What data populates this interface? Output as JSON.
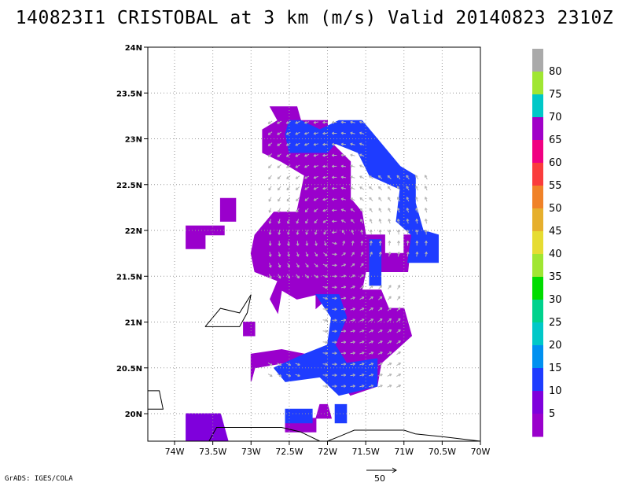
{
  "title": "140823I1 CRISTOBAL at 3 km (m/s) Valid 20140823 2310Z",
  "footer": "GrADS: IGES/COLA",
  "chart_data": {
    "type": "heatmap",
    "title": "140823I1 CRISTOBAL at 3 km (m/s) Valid 20140823 2310Z",
    "xlabel": "",
    "ylabel": "",
    "xlim": [
      -74.35,
      -70.0
    ],
    "ylim": [
      19.7,
      24.0
    ],
    "grid": true,
    "x_ticks": [
      -74,
      -73.5,
      -73,
      -72.5,
      -72,
      -71.5,
      -71,
      -70.5,
      -70
    ],
    "x_tick_labels": [
      "74W",
      "73.5W",
      "73W",
      "72.5W",
      "72W",
      "71.5W",
      "71W",
      "70.5W",
      "70W"
    ],
    "y_ticks": [
      20,
      20.5,
      21,
      21.5,
      22,
      22.5,
      23,
      23.5,
      24
    ],
    "y_tick_labels": [
      "20N",
      "20.5N",
      "21N",
      "21.5N",
      "22N",
      "22.5N",
      "23N",
      "23.5N",
      "24N"
    ],
    "colorbar": {
      "levels": [
        5,
        10,
        15,
        20,
        25,
        30,
        35,
        40,
        45,
        50,
        55,
        60,
        65,
        70,
        75,
        80
      ],
      "colors": [
        "#9a00cc",
        "#7f00dc",
        "#1e3cff",
        "#0090f0",
        "#00c8c8",
        "#00d28c",
        "#00dc00",
        "#a0e632",
        "#e6dc32",
        "#e6af2d",
        "#f08228",
        "#fa3c3c",
        "#f00082",
        "#a000c8",
        "#00c8c8",
        "#a0e632",
        "#aaaaaa"
      ]
    },
    "wind_vector_reference": {
      "label": "50",
      "speed": 50
    },
    "regions": [
      {
        "level": "5-10",
        "color": "#9a00cc",
        "polygons": [
          [
            [
              -72.75,
              23.35
            ],
            [
              -72.4,
              23.35
            ],
            [
              -72.35,
              23.2
            ],
            [
              -72.0,
              23.2
            ],
            [
              -72.0,
              23.0
            ],
            [
              -71.7,
              22.75
            ],
            [
              -71.7,
              22.35
            ],
            [
              -71.55,
              22.2
            ],
            [
              -71.5,
              21.95
            ],
            [
              -71.25,
              21.95
            ],
            [
              -71.25,
              21.75
            ],
            [
              -71.0,
              21.75
            ],
            [
              -71.0,
              21.95
            ],
            [
              -70.9,
              21.95
            ],
            [
              -70.95,
              21.55
            ],
            [
              -71.5,
              21.55
            ],
            [
              -71.55,
              21.35
            ],
            [
              -71.3,
              21.35
            ],
            [
              -71.2,
              21.15
            ],
            [
              -71.0,
              21.15
            ],
            [
              -70.9,
              20.85
            ],
            [
              -71.3,
              20.55
            ],
            [
              -71.35,
              20.3
            ],
            [
              -71.7,
              20.2
            ],
            [
              -71.85,
              20.4
            ],
            [
              -71.95,
              20.55
            ],
            [
              -72.2,
              20.6
            ],
            [
              -72.6,
              20.55
            ],
            [
              -72.95,
              20.5
            ],
            [
              -73.0,
              20.35
            ],
            [
              -73.0,
              20.65
            ],
            [
              -72.6,
              20.7
            ],
            [
              -72.3,
              20.65
            ],
            [
              -71.95,
              20.75
            ],
            [
              -71.8,
              21.1
            ],
            [
              -71.95,
              21.3
            ],
            [
              -72.15,
              21.15
            ],
            [
              -72.15,
              21.3
            ],
            [
              -72.4,
              21.25
            ],
            [
              -72.6,
              21.35
            ],
            [
              -72.65,
              21.1
            ],
            [
              -72.75,
              21.25
            ],
            [
              -72.65,
              21.45
            ],
            [
              -72.95,
              21.55
            ],
            [
              -73.0,
              21.75
            ],
            [
              -72.95,
              21.95
            ],
            [
              -72.7,
              22.2
            ],
            [
              -72.4,
              22.2
            ],
            [
              -72.3,
              22.6
            ],
            [
              -72.6,
              22.75
            ],
            [
              -72.85,
              22.85
            ],
            [
              -72.85,
              23.1
            ],
            [
              -72.65,
              23.2
            ]
          ],
          [
            [
              -73.4,
              22.35
            ],
            [
              -73.2,
              22.35
            ],
            [
              -73.2,
              22.1
            ],
            [
              -73.4,
              22.1
            ]
          ],
          [
            [
              -73.85,
              22.05
            ],
            [
              -73.35,
              22.05
            ],
            [
              -73.35,
              21.95
            ],
            [
              -73.6,
              21.95
            ],
            [
              -73.6,
              21.8
            ],
            [
              -73.85,
              21.8
            ]
          ],
          [
            [
              -73.1,
              21.0
            ],
            [
              -72.95,
              21.0
            ],
            [
              -72.95,
              20.85
            ],
            [
              -73.1,
              20.85
            ]
          ],
          [
            [
              -72.1,
              20.1
            ],
            [
              -72.0,
              20.1
            ],
            [
              -71.95,
              19.95
            ],
            [
              -72.15,
              19.95
            ]
          ],
          [
            [
              -72.55,
              19.95
            ],
            [
              -72.15,
              19.95
            ],
            [
              -72.15,
              19.8
            ],
            [
              -72.55,
              19.8
            ]
          ]
        ]
      },
      {
        "level": "10-15",
        "color": "#1e3cff",
        "polygons": [
          [
            [
              -72.5,
              23.2
            ],
            [
              -72.35,
              23.2
            ],
            [
              -72.1,
              23.1
            ],
            [
              -71.85,
              23.2
            ],
            [
              -71.55,
              23.2
            ],
            [
              -71.4,
              23.05
            ],
            [
              -71.2,
              22.85
            ],
            [
              -71.05,
              22.7
            ],
            [
              -70.85,
              22.6
            ],
            [
              -70.85,
              22.3
            ],
            [
              -70.75,
              22.0
            ],
            [
              -70.55,
              21.95
            ],
            [
              -70.55,
              21.65
            ],
            [
              -70.95,
              21.65
            ],
            [
              -70.9,
              21.95
            ],
            [
              -71.1,
              22.1
            ],
            [
              -71.05,
              22.45
            ],
            [
              -71.45,
              22.6
            ],
            [
              -71.6,
              22.85
            ],
            [
              -71.9,
              22.95
            ],
            [
              -72.0,
              22.85
            ],
            [
              -72.3,
              22.85
            ],
            [
              -72.5,
              22.85
            ],
            [
              -72.55,
              23.05
            ]
          ],
          [
            [
              -71.45,
              21.9
            ],
            [
              -71.3,
              21.9
            ],
            [
              -71.3,
              21.4
            ],
            [
              -71.45,
              21.4
            ]
          ],
          [
            [
              -72.15,
              21.3
            ],
            [
              -71.85,
              21.3
            ],
            [
              -71.75,
              21.05
            ],
            [
              -71.9,
              20.75
            ],
            [
              -71.75,
              20.55
            ],
            [
              -71.35,
              20.6
            ],
            [
              -71.35,
              20.3
            ],
            [
              -71.85,
              20.2
            ],
            [
              -72.1,
              20.4
            ],
            [
              -72.55,
              20.35
            ],
            [
              -72.7,
              20.5
            ],
            [
              -72.3,
              20.65
            ],
            [
              -72.0,
              20.75
            ],
            [
              -71.95,
              21.05
            ]
          ],
          [
            [
              -72.55,
              20.05
            ],
            [
              -72.2,
              20.05
            ],
            [
              -72.2,
              19.9
            ],
            [
              -72.55,
              19.9
            ]
          ],
          [
            [
              -71.9,
              20.1
            ],
            [
              -71.75,
              20.1
            ],
            [
              -71.75,
              19.9
            ],
            [
              -71.9,
              19.9
            ]
          ]
        ]
      },
      {
        "level": "5",
        "color": "#7f00dc",
        "polygons": [
          [
            [
              -73.85,
              20.0
            ],
            [
              -73.4,
              20.0
            ],
            [
              -73.3,
              19.7
            ],
            [
              -73.85,
              19.7
            ]
          ]
        ]
      }
    ],
    "coastlines": [
      [
        [
          -73.55,
          19.7
        ],
        [
          -73.45,
          19.85
        ],
        [
          -73.05,
          19.85
        ],
        [
          -72.85,
          19.85
        ],
        [
          -72.6,
          19.85
        ],
        [
          -72.35,
          19.8
        ],
        [
          -72.1,
          19.7
        ]
      ],
      [
        [
          -72.0,
          19.7
        ],
        [
          -71.85,
          19.75
        ],
        [
          -71.65,
          19.82
        ],
        [
          -71.4,
          19.82
        ],
        [
          -71.0,
          19.82
        ],
        [
          -70.85,
          19.78
        ],
        [
          -70.5,
          19.75
        ],
        [
          -70.0,
          19.7
        ]
      ],
      [
        [
          -73.6,
          20.95
        ],
        [
          -73.15,
          20.95
        ],
        [
          -73.05,
          21.1
        ],
        [
          -73.0,
          21.3
        ],
        [
          -73.15,
          21.1
        ],
        [
          -73.4,
          21.15
        ],
        [
          -73.6,
          20.95
        ]
      ],
      [
        [
          -74.35,
          20.25
        ],
        [
          -74.2,
          20.25
        ],
        [
          -74.15,
          20.05
        ],
        [
          -74.35,
          20.05
        ]
      ]
    ]
  }
}
